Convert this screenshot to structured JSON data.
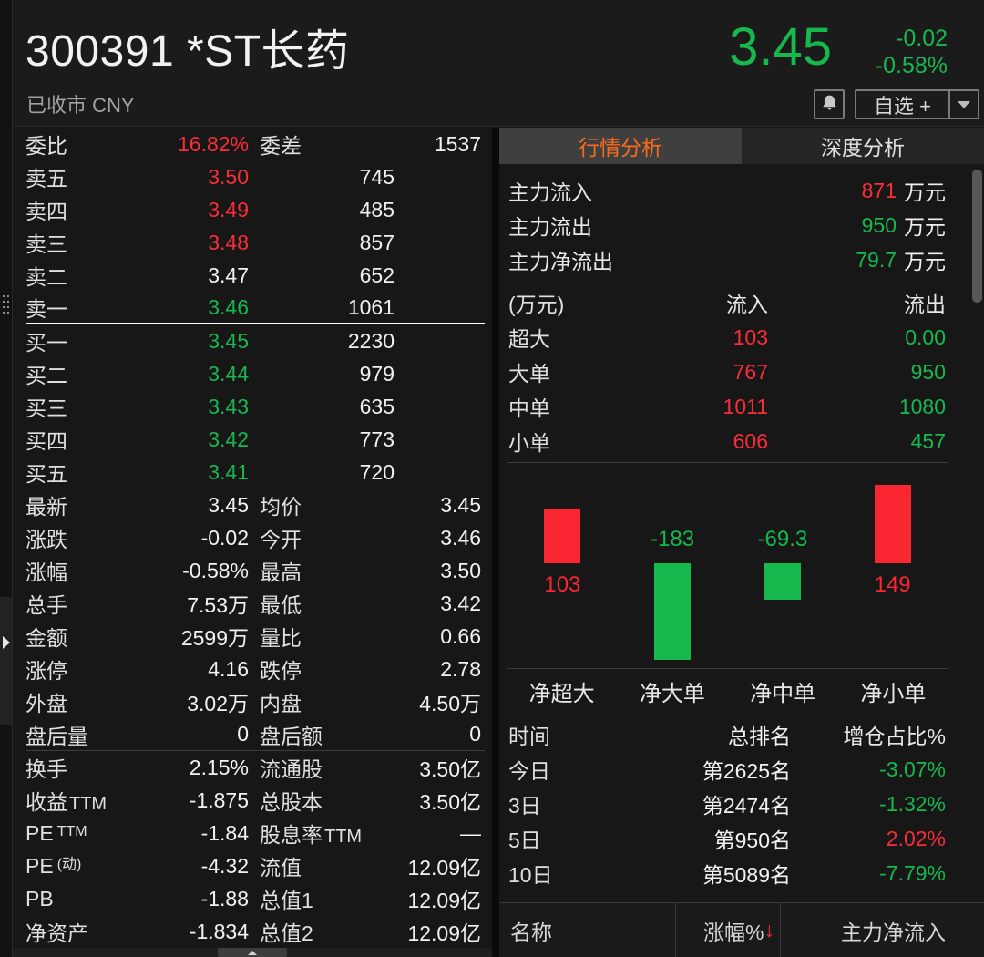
{
  "header": {
    "code_name": "300391 *ST长药",
    "status": "已收市 CNY",
    "price": "3.45",
    "change": "-0.02",
    "change_pct": "-0.58%",
    "watchlist_label": "自选 +"
  },
  "order_book": {
    "summary": {
      "l1": "委比",
      "v1": "16.82%",
      "c1": "red",
      "l2": "委差",
      "v2": "1537",
      "c2": "red"
    },
    "asks": [
      {
        "label": "卖五",
        "price": "3.50",
        "color": "red",
        "vol": "745"
      },
      {
        "label": "卖四",
        "price": "3.49",
        "color": "red",
        "vol": "485"
      },
      {
        "label": "卖三",
        "price": "3.48",
        "color": "red",
        "vol": "857"
      },
      {
        "label": "卖二",
        "price": "3.47",
        "color": "white",
        "vol": "652"
      },
      {
        "label": "卖一",
        "price": "3.46",
        "color": "green",
        "vol": "1061",
        "sep": true
      }
    ],
    "bids": [
      {
        "label": "买一",
        "price": "3.45",
        "color": "green",
        "vol": "2230"
      },
      {
        "label": "买二",
        "price": "3.44",
        "color": "green",
        "vol": "979"
      },
      {
        "label": "买三",
        "price": "3.43",
        "color": "green",
        "vol": "635"
      },
      {
        "label": "买四",
        "price": "3.42",
        "color": "green",
        "vol": "773"
      },
      {
        "label": "买五",
        "price": "3.41",
        "color": "green",
        "vol": "720"
      }
    ]
  },
  "stats": [
    {
      "l1": "最新",
      "v1": "3.45",
      "c1": "green",
      "l2": "均价",
      "v2": "3.45",
      "c2": "green"
    },
    {
      "l1": "涨跌",
      "v1": "-0.02",
      "c1": "green",
      "l2": "今开",
      "v2": "3.46",
      "c2": "green"
    },
    {
      "l1": "涨幅",
      "v1": "-0.58%",
      "c1": "green",
      "l2": "最高",
      "v2": "3.50",
      "c2": "red"
    },
    {
      "l1": "总手",
      "v1": "7.53万",
      "c1": "white",
      "l2": "最低",
      "v2": "3.42",
      "c2": "green"
    },
    {
      "l1": "金额",
      "v1": "2599万",
      "c1": "cyan",
      "l2": "量比",
      "v2": "0.66",
      "c2": "white"
    },
    {
      "l1": "涨停",
      "v1": "4.16",
      "c1": "red",
      "l2": "跌停",
      "v2": "2.78",
      "c2": "green"
    },
    {
      "l1": "外盘",
      "v1": "3.02万",
      "c1": "red",
      "l2": "内盘",
      "v2": "4.50万",
      "c2": "green"
    },
    {
      "l1": "盘后量",
      "v1": "0",
      "c1": "white",
      "l2": "盘后额",
      "v2": "0",
      "c2": "cyan",
      "sep": true
    },
    {
      "l1": "换手",
      "v1": "2.15%",
      "c1": "white",
      "l2": "流通股",
      "v2": "3.50亿",
      "c2": "white"
    },
    {
      "l1": "收益",
      "l1i": "TTM",
      "v1": "-1.875",
      "c1": "white",
      "l2": "总股本",
      "v2": "3.50亿",
      "c2": "white"
    },
    {
      "l1": "PE",
      "l1s": "TTM",
      "v1": "-1.84",
      "c1": "white",
      "l2": "股息率",
      "l2i": "TTM",
      "v2": "—",
      "c2": "white"
    },
    {
      "l1": "PE",
      "l1s": "(动)",
      "v1": "-4.32",
      "c1": "white",
      "l2": "流值",
      "v2": "12.09亿",
      "c2": "white"
    },
    {
      "l1": "PB",
      "v1": "-1.88",
      "c1": "white",
      "l2": "总值1",
      "v2": "12.09亿",
      "c2": "white"
    },
    {
      "l1": "净资产",
      "v1": "-1.834",
      "c1": "white",
      "l2": "总值2",
      "v2": "12.09亿",
      "c2": "white"
    }
  ],
  "tabs": {
    "market": "行情分析",
    "depth": "深度分析"
  },
  "main_flow": [
    {
      "label": "主力流入",
      "value": "871",
      "color": "red",
      "unit": "万元"
    },
    {
      "label": "主力流出",
      "value": "950",
      "color": "green",
      "unit": "万元"
    },
    {
      "label": "主力净流出",
      "value": "79.7",
      "color": "green",
      "unit": "万元"
    }
  ],
  "flow_table": {
    "col_label": "(万元)",
    "col_in": "流入",
    "col_out": "流出",
    "rows": [
      {
        "label": "超大",
        "inflow": "103",
        "outflow": "0.00"
      },
      {
        "label": "大单",
        "inflow": "767",
        "outflow": "950"
      },
      {
        "label": "中单",
        "inflow": "1011",
        "outflow": "1080"
      },
      {
        "label": "小单",
        "inflow": "606",
        "outflow": "457"
      }
    ]
  },
  "chart_data": {
    "type": "bar",
    "categories": [
      "净超大",
      "净大单",
      "净中单",
      "净小单"
    ],
    "values": [
      103,
      -183,
      -69.3,
      149
    ],
    "labels": [
      "103",
      "-183",
      "-69.3",
      "149"
    ],
    "value_unit": "万元",
    "baseline": 0,
    "grid": false,
    "up_color": "#fa2632",
    "down_color": "#17b84e"
  },
  "rank_table": {
    "col_time": "时间",
    "col_rank": "总排名",
    "col_pct": "增仓占比%",
    "rows": [
      {
        "time": "今日",
        "rank": "第2625名",
        "pct": "-3.07%",
        "color": "green"
      },
      {
        "time": "3日",
        "rank": "第2474名",
        "pct": "-1.32%",
        "color": "green"
      },
      {
        "time": "5日",
        "rank": "第950名",
        "pct": "2.02%",
        "color": "red"
      },
      {
        "time": "10日",
        "rank": "第5089名",
        "pct": "-7.79%",
        "color": "green"
      }
    ]
  },
  "bottom_header": {
    "name": "名称",
    "pct": "涨幅%",
    "sort_arrow": "↓",
    "net_inflow": "主力净流入"
  },
  "colors": {
    "red": "#fa2d38",
    "green": "#17b84e",
    "cyan": "#35c3cb",
    "orange": "#f96c1c"
  }
}
